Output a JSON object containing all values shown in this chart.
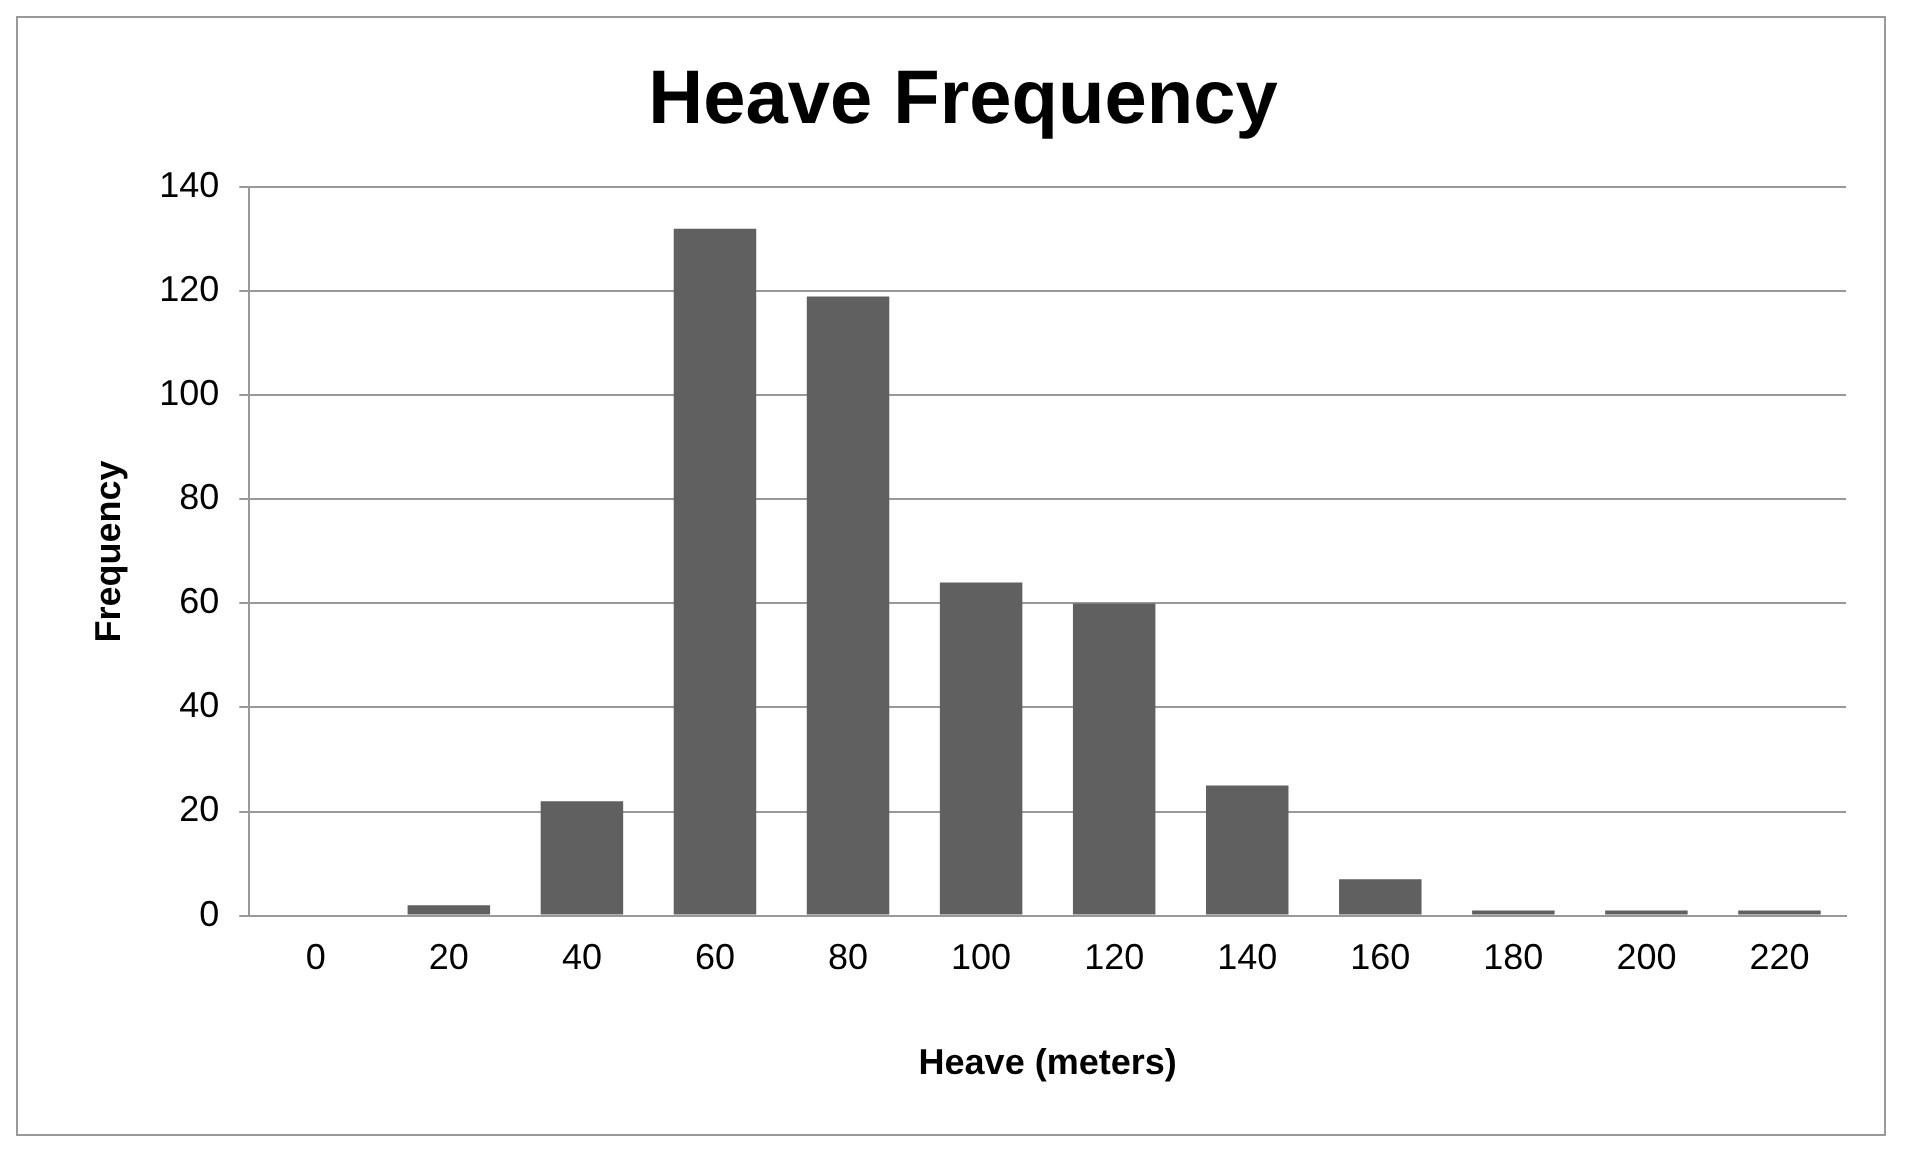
{
  "chart_data": {
    "type": "bar",
    "title": "Heave Frequency",
    "xlabel": "Heave (meters)",
    "ylabel": "Frequency",
    "categories": [
      "0",
      "20",
      "40",
      "60",
      "80",
      "100",
      "120",
      "140",
      "160",
      "180",
      "200",
      "220"
    ],
    "values": [
      0,
      2,
      22,
      132,
      119,
      64,
      60,
      25,
      7,
      1,
      1,
      1
    ],
    "color": "#606060",
    "ylim": [
      0,
      140
    ],
    "yticks": [
      0,
      20,
      40,
      60,
      80,
      100,
      120,
      140
    ],
    "grid": "y",
    "legend": false
  }
}
